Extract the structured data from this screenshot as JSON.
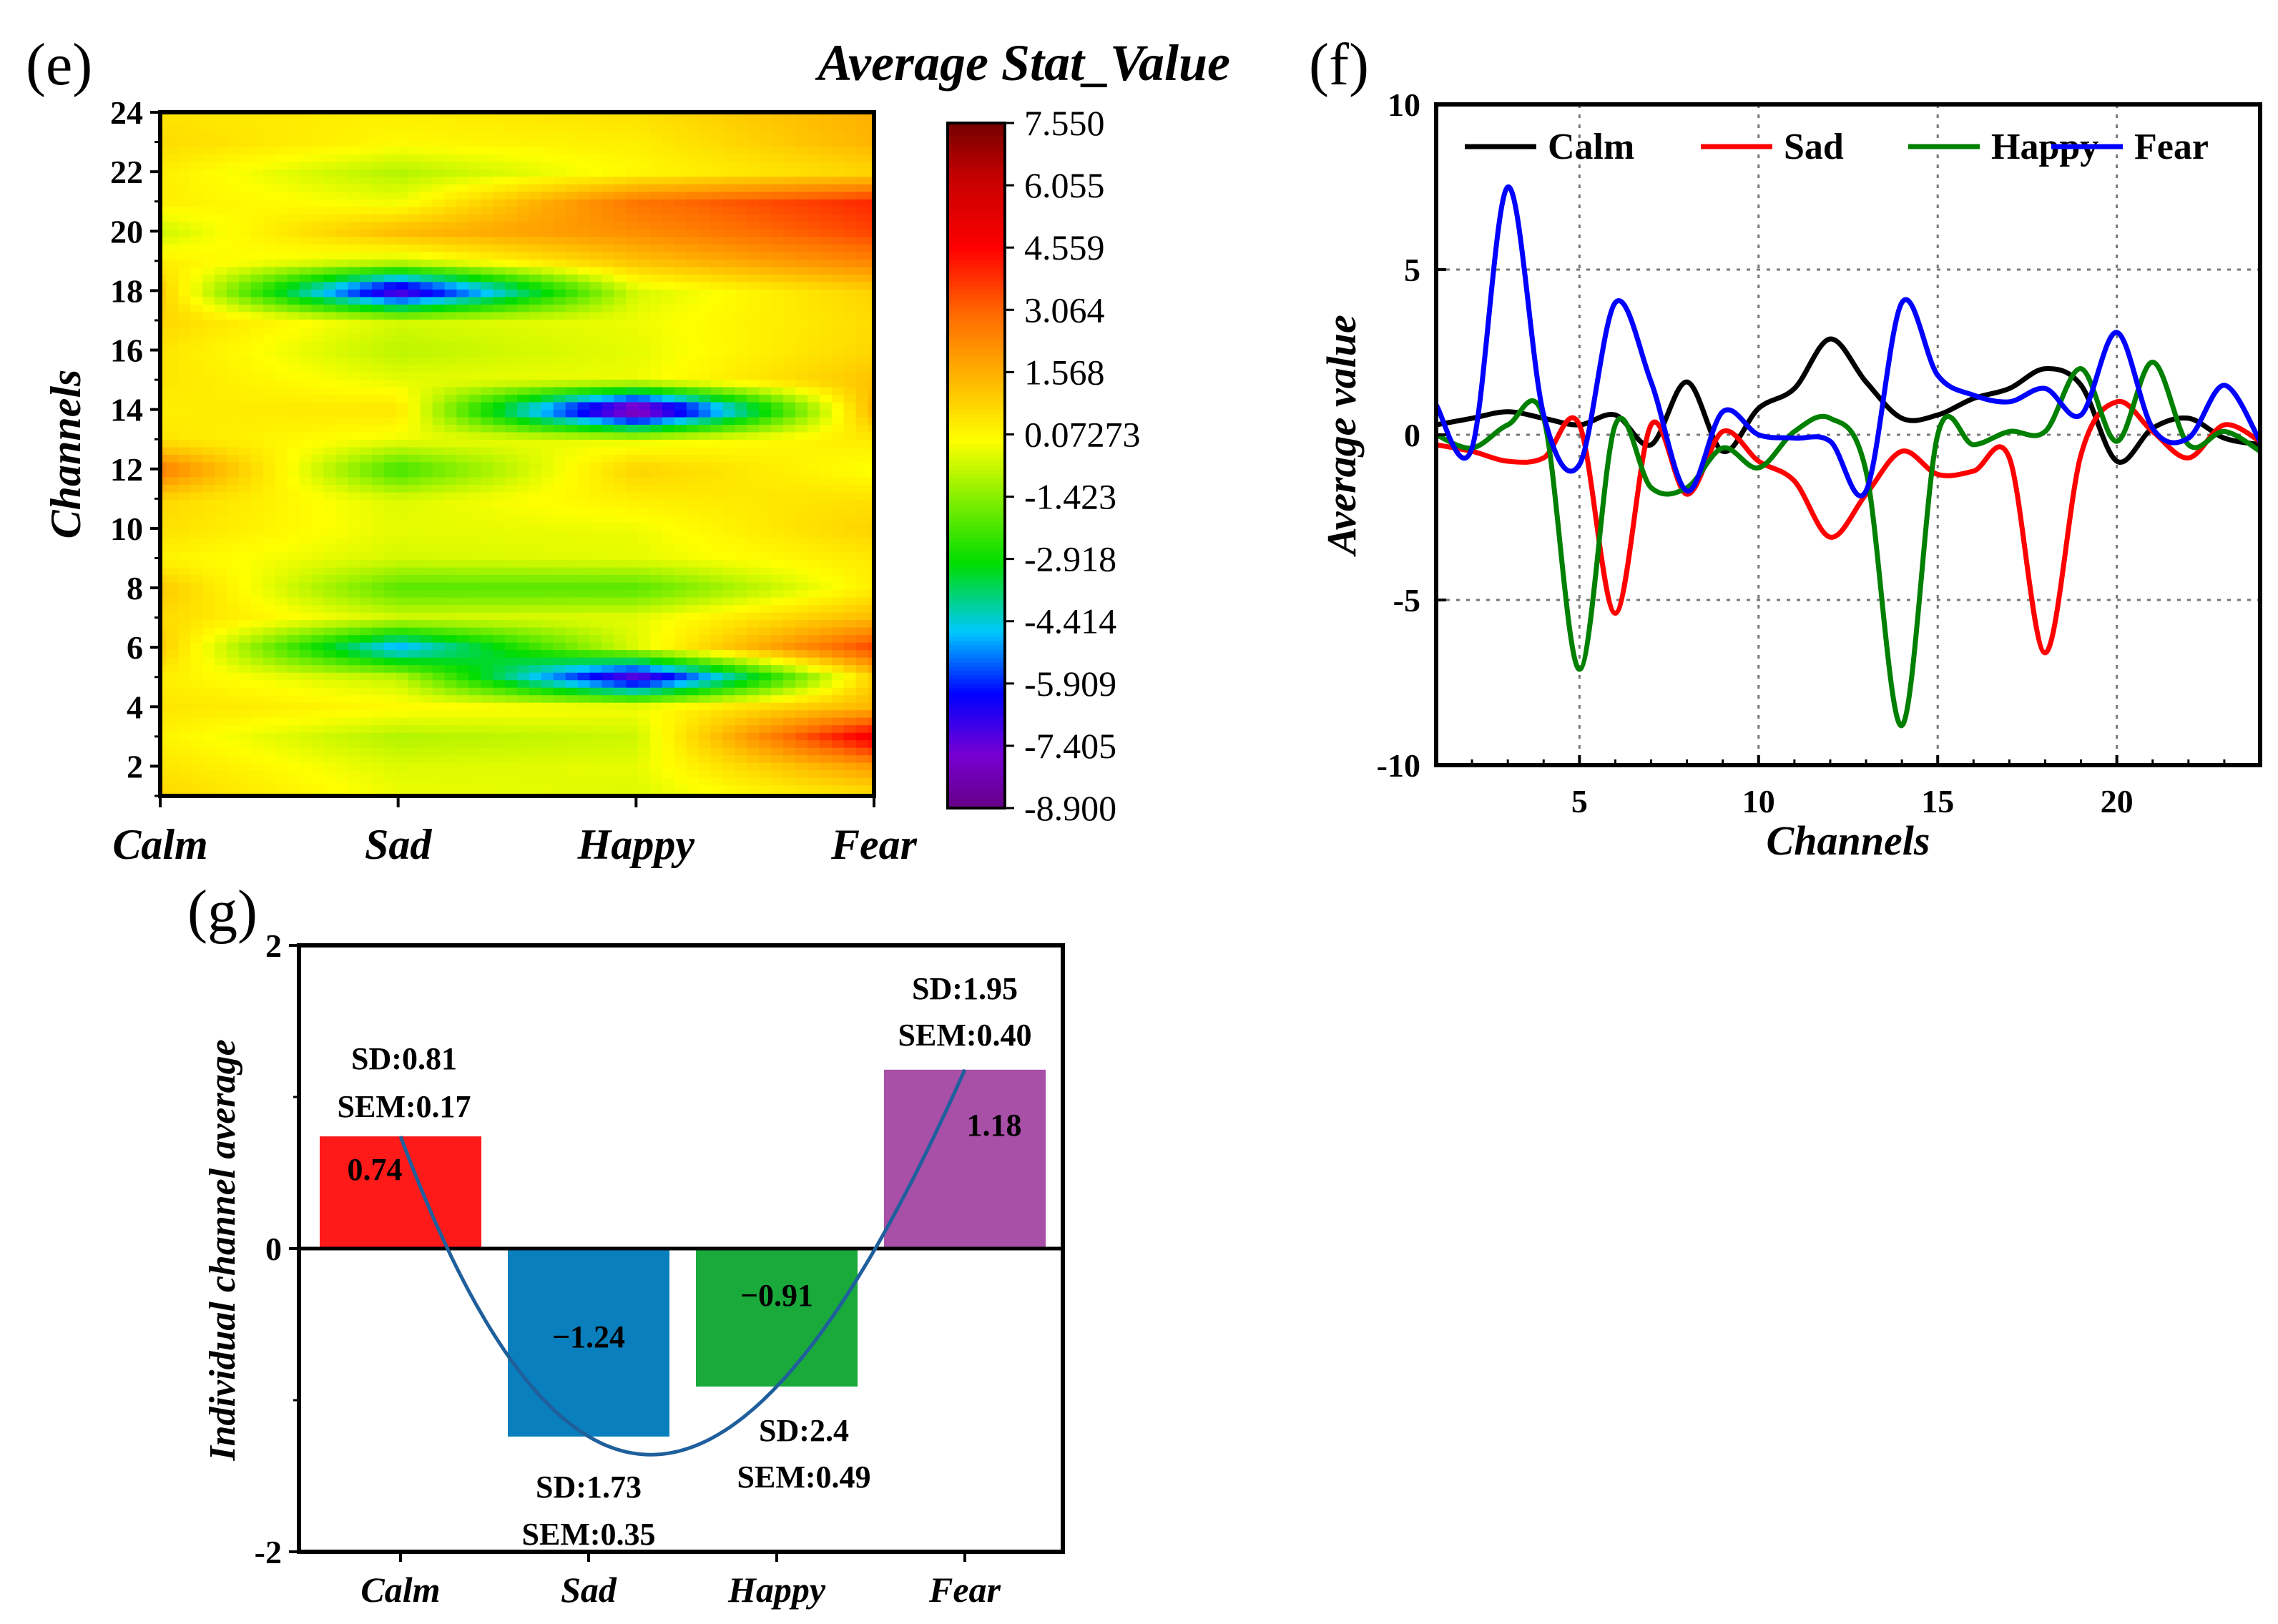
{
  "panels": {
    "e": {
      "label": "(e)",
      "title": "Average Stat_Value",
      "ylabel": "Channels",
      "xcats": [
        "Calm",
        "Sad",
        "Happy",
        "Fear"
      ],
      "yticks": [
        "2",
        "4",
        "6",
        "8",
        "10",
        "12",
        "14",
        "16",
        "18",
        "20",
        "22",
        "24"
      ],
      "colorbar": {
        "labels": [
          "7.550",
          "6.055",
          "4.559",
          "3.064",
          "1.568",
          "0.07273",
          "-1.423",
          "-2.918",
          "-4.414",
          "-5.909",
          "-7.405",
          "-8.900"
        ],
        "min": -8.9,
        "max": 7.55
      }
    },
    "f": {
      "label": "(f)",
      "xlabel": "Channels",
      "ylabel": "Average value",
      "xticks": [
        "5",
        "10",
        "15",
        "20"
      ],
      "yticks": [
        "10",
        "5",
        "0",
        "-5",
        "-10"
      ],
      "legend": [
        "Calm",
        "Sad",
        "Happy",
        "Fear"
      ]
    },
    "g": {
      "label": "(g)",
      "ylabel": "Individual channel average",
      "yticks": [
        "2",
        "0",
        "-2"
      ],
      "cats": [
        "Calm",
        "Sad",
        "Happy",
        "Fear"
      ],
      "value_labels": [
        "0.74",
        "−1.24",
        "−0.91",
        "1.18"
      ],
      "sd_labels": [
        "SD:0.81",
        "SD:1.73",
        "SD:2.4",
        "SD:1.95"
      ],
      "sem_labels": [
        "SEM:0.17",
        "SEM:0.35",
        "SEM:0.49",
        "SEM:0.40"
      ]
    }
  },
  "colors": {
    "calm": "#000000",
    "sad": "#ff0000",
    "happy": "#008000",
    "fear": "#0000ff",
    "bar_calm": "#ff1a1a",
    "bar_sad": "#0a7fbd",
    "bar_happy": "#1aaa3c",
    "bar_fear": "#a84fa8",
    "fit_curve": "#1f5f9c"
  },
  "chart_data": [
    {
      "panel": "e",
      "type": "heatmap",
      "title": "Average Stat_Value",
      "xlabel": "",
      "ylabel": "Channels",
      "x": [
        "Calm",
        "Sad",
        "Happy",
        "Fear"
      ],
      "y": [
        1,
        2,
        3,
        4,
        5,
        6,
        7,
        8,
        9,
        10,
        11,
        12,
        13,
        14,
        15,
        16,
        17,
        18,
        19,
        20,
        21,
        22,
        23,
        24
      ],
      "zlim": [
        -8.9,
        7.55
      ],
      "z": [
        [
          0.8,
          -0.2,
          -0.4,
          0.5
        ],
        [
          0.5,
          -0.4,
          -0.3,
          2.0
        ],
        [
          0.2,
          -0.9,
          -0.6,
          5.0
        ],
        [
          0.5,
          0.1,
          -0.1,
          1.5
        ],
        [
          0.3,
          -0.7,
          -7.5,
          0.9
        ],
        [
          1.0,
          -5.0,
          -0.4,
          3.6
        ],
        [
          0.7,
          -0.5,
          -0.3,
          1.4
        ],
        [
          1.1,
          -2.0,
          -2.0,
          0.3
        ],
        [
          0.2,
          -0.5,
          -0.3,
          0.4
        ],
        [
          0.6,
          -0.3,
          -0.2,
          0.9
        ],
        [
          0.8,
          -0.4,
          0.3,
          0.6
        ],
        [
          2.7,
          -2.3,
          0.9,
          -0.1
        ],
        [
          0.5,
          -0.2,
          -0.3,
          0.4
        ],
        [
          0.3,
          0.5,
          -8.9,
          1.5
        ],
        [
          0.5,
          -0.3,
          -0.2,
          1.2
        ],
        [
          0.5,
          -0.8,
          -0.3,
          0.8
        ],
        [
          0.8,
          -0.5,
          -0.2,
          0.7
        ],
        [
          1.0,
          -7.5,
          -0.5,
          0.9
        ],
        [
          0.3,
          -0.6,
          1.2,
          2.5
        ],
        [
          -0.6,
          1.4,
          2.3,
          3.6
        ],
        [
          0.3,
          -0.2,
          2.8,
          4.0
        ],
        [
          0.3,
          -0.9,
          0.1,
          0.8
        ],
        [
          0.7,
          0.1,
          0.3,
          1.5
        ],
        [
          0.5,
          0.3,
          0.6,
          1.6
        ]
      ]
    },
    {
      "panel": "f",
      "type": "line",
      "xlabel": "Channels",
      "ylabel": "Average value",
      "xlim": [
        1,
        24
      ],
      "ylim": [
        -10,
        10
      ],
      "x": [
        1,
        2,
        3,
        4,
        5,
        6,
        7,
        8,
        9,
        10,
        11,
        12,
        13,
        14,
        15,
        16,
        17,
        18,
        19,
        20,
        21,
        22,
        23,
        24
      ],
      "series": [
        {
          "name": "Calm",
          "values": [
            0.3,
            0.5,
            0.7,
            0.5,
            0.3,
            0.6,
            -0.3,
            1.6,
            -0.5,
            0.8,
            1.4,
            2.9,
            1.6,
            0.5,
            0.6,
            1.1,
            1.4,
            2.0,
            1.5,
            -0.8,
            0.2,
            0.5,
            -0.1,
            -0.3
          ]
        },
        {
          "name": "Sad",
          "values": [
            -0.3,
            -0.5,
            -0.8,
            -0.7,
            0.3,
            -5.4,
            0.3,
            -1.8,
            0.1,
            -0.8,
            -1.4,
            -3.1,
            -1.8,
            -0.5,
            -1.2,
            -1.1,
            -0.7,
            -6.6,
            -0.6,
            1.0,
            0.1,
            -0.7,
            0.3,
            -0.2
          ]
        },
        {
          "name": "Happy",
          "values": [
            0.0,
            -0.4,
            0.3,
            0.5,
            -7.1,
            0.3,
            -1.6,
            -1.6,
            -0.4,
            -1.0,
            0.1,
            0.5,
            -1.1,
            -8.8,
            0.0,
            -0.3,
            0.1,
            0.1,
            2.0,
            -0.2,
            2.2,
            -0.3,
            0.1,
            -0.5
          ]
        },
        {
          "name": "Fear",
          "values": [
            0.9,
            -0.4,
            7.5,
            0.6,
            -0.9,
            4.0,
            1.6,
            -1.7,
            0.7,
            0.0,
            -0.1,
            -0.2,
            -1.7,
            4.0,
            1.8,
            1.2,
            1.0,
            1.4,
            0.6,
            3.1,
            0.2,
            -0.1,
            1.5,
            -0.2
          ]
        }
      ]
    },
    {
      "panel": "g",
      "type": "bar",
      "xlabel": "",
      "ylabel": "Individual channel average",
      "categories": [
        "Calm",
        "Sad",
        "Happy",
        "Fear"
      ],
      "values": [
        0.74,
        -1.24,
        -0.91,
        1.18
      ],
      "sd": [
        0.81,
        1.73,
        2.4,
        1.95
      ],
      "sem": [
        0.17,
        0.35,
        0.49,
        0.4
      ],
      "ylim": [
        -2,
        2
      ],
      "fit_curve": {
        "type": "cubic",
        "through_values": [
          0.74,
          -1.24,
          -0.91,
          1.18
        ]
      }
    }
  ]
}
